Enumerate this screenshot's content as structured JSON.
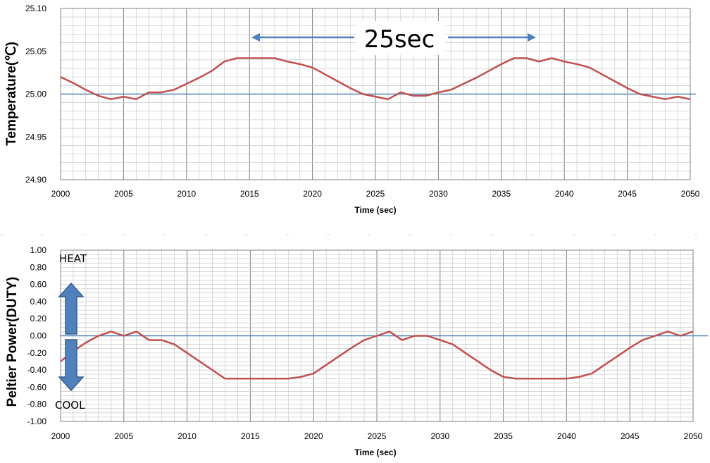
{
  "chart_data": [
    {
      "type": "line",
      "xlabel": "Time (sec)",
      "ylabel": "Temperature(℃)",
      "xlim": [
        2000,
        2050
      ],
      "ylim": [
        24.9,
        25.1
      ],
      "xticks": [
        "2000",
        "2005",
        "2010",
        "2015",
        "2020",
        "2025",
        "2030",
        "2035",
        "2040",
        "2045",
        "2050"
      ],
      "yticks": [
        "24.90",
        "24.95",
        "25.00",
        "25.05",
        "25.10"
      ],
      "grid": true,
      "reference_line": 25.0,
      "series": [
        {
          "color": "#c0504d",
          "x": [
            2000,
            2001,
            2002,
            2003,
            2004,
            2005,
            2006,
            2007,
            2008,
            2009,
            2010,
            2011,
            2012,
            2013,
            2014,
            2015,
            2016,
            2017,
            2018,
            2019,
            2020,
            2021,
            2022,
            2023,
            2024,
            2025,
            2026,
            2027,
            2028,
            2029,
            2030,
            2031,
            2032,
            2033,
            2034,
            2035,
            2036,
            2037,
            2038,
            2039,
            2040,
            2041,
            2042,
            2043,
            2044,
            2045,
            2046,
            2047,
            2048,
            2049,
            2050
          ],
          "y": [
            25.02,
            25.013,
            25.005,
            24.998,
            24.994,
            24.997,
            24.994,
            25.002,
            25.002,
            25.005,
            25.012,
            25.019,
            25.027,
            25.038,
            25.042,
            25.042,
            25.042,
            25.042,
            25.038,
            25.035,
            25.031,
            25.023,
            25.015,
            25.007,
            25.0,
            24.997,
            24.994,
            25.002,
            24.998,
            24.998,
            25.002,
            25.005,
            25.012,
            25.019,
            25.027,
            25.035,
            25.042,
            25.042,
            25.038,
            25.042,
            25.038,
            25.035,
            25.031,
            25.023,
            25.015,
            25.007,
            25.0,
            24.997,
            24.994,
            24.997,
            24.994
          ]
        }
      ],
      "annotation": {
        "text": "25sec",
        "from_x": 2015,
        "to_x": 2038.5
      }
    },
    {
      "type": "line",
      "xlabel": "Time (sec)",
      "ylabel": "Peltier Power(DUTY)",
      "xlim": [
        2000,
        2050
      ],
      "ylim": [
        -1.0,
        1.0
      ],
      "xticks": [
        "2000",
        "2005",
        "2010",
        "2015",
        "2020",
        "2025",
        "2030",
        "2035",
        "2040",
        "2045",
        "2050"
      ],
      "yticks": [
        "-1.00",
        "-0.80",
        "-0.60",
        "-0.40",
        "-0.20",
        "0.00",
        "0.20",
        "0.40",
        "0.60",
        "0.80",
        "1.00"
      ],
      "grid": true,
      "reference_line": 0.0,
      "series": [
        {
          "color": "#c0504d",
          "x": [
            2000,
            2001,
            2002,
            2003,
            2004,
            2005,
            2006,
            2007,
            2008,
            2009,
            2010,
            2011,
            2012,
            2013,
            2014,
            2015,
            2016,
            2017,
            2018,
            2019,
            2020,
            2021,
            2022,
            2023,
            2024,
            2025,
            2026,
            2027,
            2028,
            2029,
            2030,
            2031,
            2032,
            2033,
            2034,
            2035,
            2036,
            2037,
            2038,
            2039,
            2040,
            2041,
            2042,
            2043,
            2044,
            2045,
            2046,
            2047,
            2048,
            2049,
            2050
          ],
          "y": [
            -0.3,
            -0.18,
            -0.08,
            0.0,
            0.05,
            0.0,
            0.05,
            -0.05,
            -0.05,
            -0.1,
            -0.2,
            -0.3,
            -0.4,
            -0.5,
            -0.5,
            -0.5,
            -0.5,
            -0.5,
            -0.5,
            -0.48,
            -0.44,
            -0.34,
            -0.24,
            -0.14,
            -0.05,
            0.0,
            0.05,
            -0.05,
            0.0,
            0.0,
            -0.05,
            -0.1,
            -0.2,
            -0.3,
            -0.4,
            -0.48,
            -0.5,
            -0.5,
            -0.5,
            -0.5,
            -0.5,
            -0.48,
            -0.44,
            -0.34,
            -0.24,
            -0.14,
            -0.05,
            0.0,
            0.05,
            0.0,
            0.05
          ]
        }
      ],
      "annotations": {
        "heat": "HEAT",
        "cool": "COOL"
      }
    }
  ]
}
